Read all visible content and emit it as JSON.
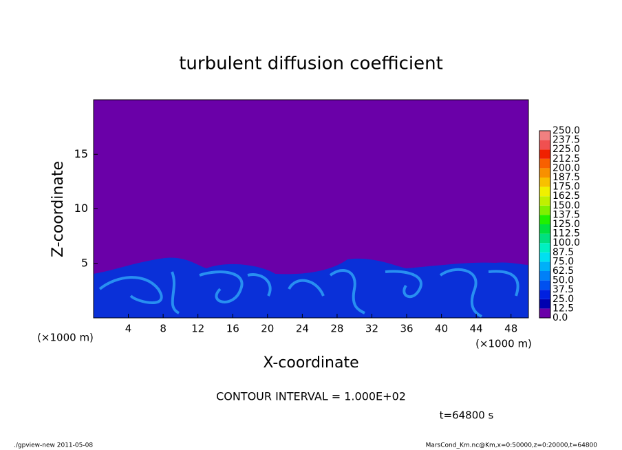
{
  "chart_data": {
    "type": "contour",
    "title": "turbulent diffusion coefficient",
    "xlabel": "X-coordinate",
    "ylabel": "Z-coordinate",
    "xunit_left": "(×1000 m)",
    "xunit_right": "(×1000 m)",
    "xlim": [
      0,
      50
    ],
    "ylim": [
      0,
      20
    ],
    "xticks": [
      4,
      8,
      12,
      16,
      20,
      24,
      28,
      32,
      36,
      40,
      44,
      48
    ],
    "yticks": [
      5,
      10,
      15
    ],
    "contour_interval": "CONTOUR INTERVAL = 1.000E+02",
    "time": "t=64800 s",
    "footer_left": "./gpview-new  2011-05-08",
    "footer_right": "MarsCond_Km.nc@Km,x=0:50000,z=0:20000,t=64800",
    "colorbar": {
      "levels": [
        {
          "value": 0,
          "label": "0.0"
        },
        {
          "value": 12.5,
          "label": "12.5"
        },
        {
          "value": 25,
          "label": "25.0"
        },
        {
          "value": 37.5,
          "label": "37.5"
        },
        {
          "value": 50,
          "label": "50.0"
        },
        {
          "value": 62.5,
          "label": "62.5"
        },
        {
          "value": 75,
          "label": "75.0"
        },
        {
          "value": 87.5,
          "label": "87.5"
        },
        {
          "value": 100,
          "label": "100.0"
        },
        {
          "value": 112.5,
          "label": "112.5"
        },
        {
          "value": 125,
          "label": "125.0"
        },
        {
          "value": 137.5,
          "label": "137.5"
        },
        {
          "value": 150,
          "label": "150.0"
        },
        {
          "value": 162.5,
          "label": "162.5"
        },
        {
          "value": 175,
          "label": "175.0"
        },
        {
          "value": 187.5,
          "label": "187.5"
        },
        {
          "value": 200,
          "label": "200.0"
        },
        {
          "value": 212.5,
          "label": "212.5"
        },
        {
          "value": 225,
          "label": "225.0"
        },
        {
          "value": 237.5,
          "label": "237.5"
        },
        {
          "value": 250,
          "label": "250.0"
        }
      ],
      "colors": [
        "#6a00a8",
        "#0000b0",
        "#0020e0",
        "#0050f0",
        "#0080f8",
        "#00b0f8",
        "#00e0f0",
        "#00f0c0",
        "#00e080",
        "#00e040",
        "#20f000",
        "#80f000",
        "#c0f000",
        "#f0f000",
        "#f8c000",
        "#f89000",
        "#f86000",
        "#f02000",
        "#f05050",
        "#f08080"
      ]
    }
  }
}
